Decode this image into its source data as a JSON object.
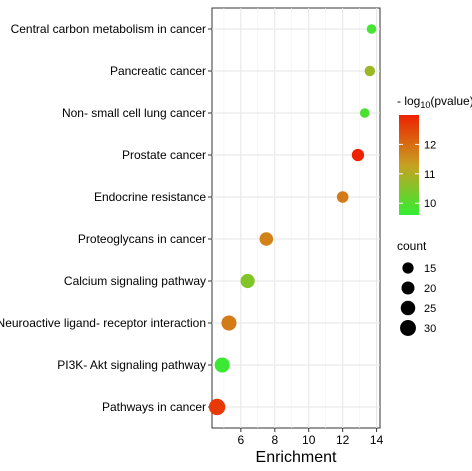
{
  "chart_data": {
    "type": "scatter",
    "title": "",
    "xlabel": "Enrichment",
    "ylabel": "",
    "xlim": [
      4.3,
      14.2
    ],
    "xticks": [
      6,
      8,
      10,
      12,
      14
    ],
    "grid": true,
    "legend_position": "right",
    "categories": [
      "Central carbon metabolism in cancer",
      "Pancreatic cancer",
      "Non- small cell lung cancer",
      "Prostate cancer",
      "Endocrine resistance",
      "Proteoglycans in cancer",
      "Calcium signaling pathway",
      "Neuroactive ligand- receptor interaction",
      "PI3K- Akt signaling pathway",
      "Pathways in cancer"
    ],
    "points": [
      {
        "category": "Central carbon metabolism in cancer",
        "x": 13.7,
        "count": 11,
        "neg_log10_pvalue": 9.8
      },
      {
        "category": "Pancreatic cancer",
        "x": 13.6,
        "count": 13,
        "neg_log10_pvalue": 10.8
      },
      {
        "category": "Non- small cell lung cancer",
        "x": 13.3,
        "count": 11,
        "neg_log10_pvalue": 9.9
      },
      {
        "category": "Prostate cancer",
        "x": 12.9,
        "count": 18,
        "neg_log10_pvalue": 13.0
      },
      {
        "category": "Endocrine resistance",
        "x": 12.0,
        "count": 16,
        "neg_log10_pvalue": 11.8
      },
      {
        "category": "Proteoglycans in cancer",
        "x": 7.5,
        "count": 22,
        "neg_log10_pvalue": 11.7
      },
      {
        "category": "Calcium signaling pathway",
        "x": 6.4,
        "count": 24,
        "neg_log10_pvalue": 10.5
      },
      {
        "category": "Neuroactive ligand- receptor interaction",
        "x": 5.3,
        "count": 27,
        "neg_log10_pvalue": 11.8
      },
      {
        "category": "PI3K- Akt signaling pathway",
        "x": 4.9,
        "count": 27,
        "neg_log10_pvalue": 9.7
      },
      {
        "category": "Pathways in cancer",
        "x": 4.6,
        "count": 32,
        "neg_log10_pvalue": 12.7
      }
    ],
    "color_legend": {
      "title_prefix": "- log",
      "title_sub": "10",
      "title_suffix": "(pvalue)",
      "min": 9.6,
      "max": 13.0,
      "ticks": [
        10,
        11,
        12
      ],
      "low_color": "#33ee33",
      "mid_color": "#c8a020",
      "high_color": "#ee2200"
    },
    "size_legend": {
      "title": "count",
      "values": [
        15,
        20,
        25,
        30
      ]
    }
  }
}
